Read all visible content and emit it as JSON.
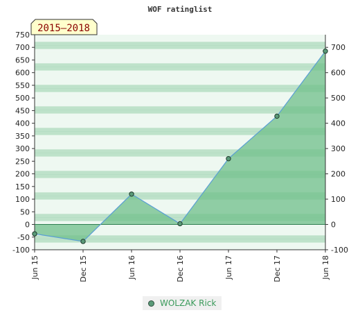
{
  "chart_data": {
    "type": "area",
    "title": "WOF ratinglist",
    "badge": "2015–2018",
    "categories": [
      "Jun 15",
      "Dec 15",
      "Jun 16",
      "Dec 16",
      "Jun 17",
      "Dec 17",
      "Jun 18"
    ],
    "series": [
      {
        "name": "WOLZAK Rick",
        "values": [
          -37,
          -67,
          120,
          3,
          260,
          428,
          685
        ]
      }
    ],
    "left_axis": {
      "ylim": [
        -100,
        750
      ],
      "ticks": [
        -100,
        -50,
        0,
        50,
        100,
        150,
        200,
        250,
        300,
        350,
        400,
        450,
        500,
        550,
        600,
        650,
        700,
        750
      ]
    },
    "right_axis": {
      "ylim": [
        -100,
        750
      ],
      "ticks": [
        -100,
        0,
        100,
        200,
        300,
        400,
        500,
        600,
        700
      ]
    },
    "grid": true,
    "legend_position": "bottom",
    "colors": {
      "fill": "#6fbf8a",
      "line": "#5a9fd4",
      "marker": "#5a9a78",
      "band_dark": "#a8d8b8",
      "band_light": "#eef8f1"
    }
  }
}
